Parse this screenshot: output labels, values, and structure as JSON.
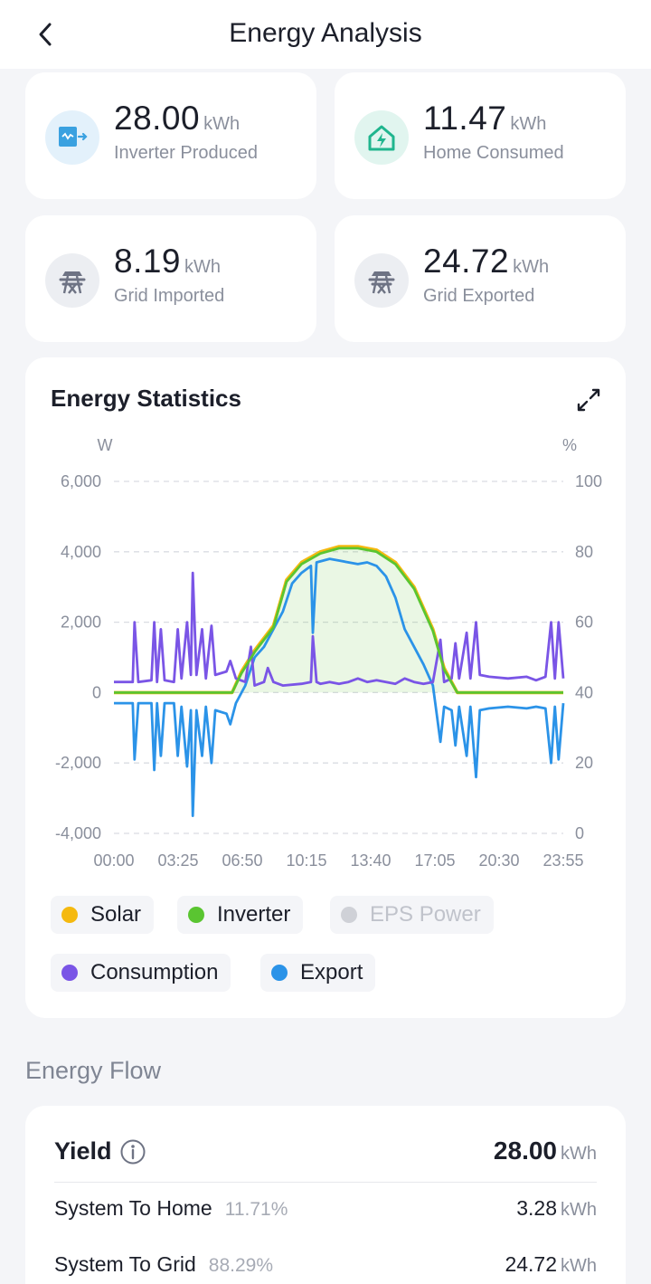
{
  "header": {
    "title": "Energy Analysis",
    "back_icon": "chevron-left-icon"
  },
  "stats": [
    {
      "value": "28.00",
      "unit": "kWh",
      "label": "Inverter Produced",
      "icon": "inverter-icon",
      "icon_color": "#3aa1e0",
      "icon_bg": "#e3f1fb"
    },
    {
      "value": "11.47",
      "unit": "kWh",
      "label": "Home Consumed",
      "icon": "home-energy-icon",
      "icon_color": "#20b58e",
      "icon_bg": "#e1f5ef"
    },
    {
      "value": "8.19",
      "unit": "kWh",
      "label": "Grid Imported",
      "icon": "grid-tower-icon",
      "icon_color": "#6e7384",
      "icon_bg": "#eceef2"
    },
    {
      "value": "24.72",
      "unit": "kWh",
      "label": "Grid Exported",
      "icon": "grid-tower-icon",
      "icon_color": "#6e7384",
      "icon_bg": "#eceef2"
    }
  ],
  "chart": {
    "title": "Energy Statistics",
    "expand_icon": "expand-icon"
  },
  "chart_data": {
    "type": "line",
    "y_left_label": "W",
    "y_right_label": "%",
    "y_left_ticks": [
      "6,000",
      "4,000",
      "2,000",
      "0",
      "-2,000",
      "-4,000"
    ],
    "y_right_ticks": [
      "100",
      "80",
      "60",
      "40",
      "20",
      "0"
    ],
    "ylim": [
      -4000,
      6000
    ],
    "x_ticks": [
      "00:00",
      "03:25",
      "06:50",
      "10:15",
      "13:40",
      "17:05",
      "20:30",
      "23:55"
    ],
    "grid": "dashed-horizontal",
    "series": [
      {
        "name": "Solar",
        "color": "#f5b90f",
        "points": [
          [
            0,
            0
          ],
          [
            6.3,
            0
          ],
          [
            6.8,
            600
          ],
          [
            7.5,
            1200
          ],
          [
            8.5,
            1900
          ],
          [
            9.2,
            3200
          ],
          [
            10,
            3700
          ],
          [
            11,
            4000
          ],
          [
            12,
            4150
          ],
          [
            13,
            4150
          ],
          [
            14,
            4050
          ],
          [
            15,
            3700
          ],
          [
            16,
            3000
          ],
          [
            17,
            1800
          ],
          [
            17.6,
            700
          ],
          [
            18.3,
            0
          ],
          [
            23.95,
            0
          ]
        ]
      },
      {
        "name": "Inverter",
        "color": "#5ac531",
        "points": [
          [
            0,
            0
          ],
          [
            6.3,
            0
          ],
          [
            6.8,
            550
          ],
          [
            7.5,
            1150
          ],
          [
            8.5,
            1850
          ],
          [
            9.2,
            3150
          ],
          [
            10,
            3650
          ],
          [
            11,
            3950
          ],
          [
            12,
            4100
          ],
          [
            13,
            4100
          ],
          [
            14,
            4000
          ],
          [
            15,
            3650
          ],
          [
            16,
            2950
          ],
          [
            17,
            1750
          ],
          [
            17.6,
            650
          ],
          [
            18.3,
            0
          ],
          [
            23.95,
            0
          ]
        ]
      },
      {
        "name": "EPS Power",
        "color": "#c9ccd3",
        "points": []
      },
      {
        "name": "Consumption",
        "color": "#7a55e6",
        "points": [
          [
            0,
            300
          ],
          [
            1,
            300
          ],
          [
            1.1,
            2000
          ],
          [
            1.3,
            300
          ],
          [
            2,
            350
          ],
          [
            2.15,
            2000
          ],
          [
            2.3,
            300
          ],
          [
            2.5,
            1800
          ],
          [
            2.7,
            350
          ],
          [
            3.2,
            300
          ],
          [
            3.4,
            1800
          ],
          [
            3.6,
            400
          ],
          [
            3.9,
            2000
          ],
          [
            4.1,
            500
          ],
          [
            4.2,
            3400
          ],
          [
            4.4,
            500
          ],
          [
            4.7,
            1800
          ],
          [
            4.9,
            400
          ],
          [
            5.2,
            1900
          ],
          [
            5.4,
            500
          ],
          [
            6,
            600
          ],
          [
            6.2,
            900
          ],
          [
            6.5,
            400
          ],
          [
            7,
            300
          ],
          [
            7.3,
            1300
          ],
          [
            7.5,
            200
          ],
          [
            8,
            300
          ],
          [
            8.2,
            700
          ],
          [
            8.5,
            300
          ],
          [
            9,
            200
          ],
          [
            10,
            250
          ],
          [
            10.5,
            300
          ],
          [
            10.6,
            1600
          ],
          [
            10.8,
            300
          ],
          [
            11,
            250
          ],
          [
            11.5,
            300
          ],
          [
            12,
            250
          ],
          [
            12.5,
            300
          ],
          [
            13,
            400
          ],
          [
            13.5,
            300
          ],
          [
            14,
            350
          ],
          [
            14.5,
            300
          ],
          [
            15,
            250
          ],
          [
            15.5,
            400
          ],
          [
            16,
            300
          ],
          [
            16.5,
            250
          ],
          [
            17,
            300
          ],
          [
            17.4,
            1500
          ],
          [
            17.6,
            300
          ],
          [
            18,
            400
          ],
          [
            18.2,
            1400
          ],
          [
            18.4,
            400
          ],
          [
            18.8,
            1700
          ],
          [
            19,
            400
          ],
          [
            19.3,
            2000
          ],
          [
            19.5,
            500
          ],
          [
            20,
            450
          ],
          [
            21,
            400
          ],
          [
            22,
            450
          ],
          [
            22.5,
            350
          ],
          [
            23,
            450
          ],
          [
            23.3,
            2000
          ],
          [
            23.5,
            400
          ],
          [
            23.7,
            2000
          ],
          [
            23.95,
            400
          ]
        ]
      },
      {
        "name": "Export",
        "color": "#2b93e8",
        "points": [
          [
            0,
            -300
          ],
          [
            1,
            -300
          ],
          [
            1.1,
            -1900
          ],
          [
            1.3,
            -300
          ],
          [
            2,
            -300
          ],
          [
            2.15,
            -2200
          ],
          [
            2.3,
            -300
          ],
          [
            2.5,
            -1800
          ],
          [
            2.7,
            -300
          ],
          [
            3.2,
            -300
          ],
          [
            3.4,
            -1800
          ],
          [
            3.6,
            -400
          ],
          [
            3.9,
            -2100
          ],
          [
            4.1,
            -500
          ],
          [
            4.2,
            -3500
          ],
          [
            4.4,
            -500
          ],
          [
            4.7,
            -1800
          ],
          [
            4.9,
            -400
          ],
          [
            5.2,
            -2000
          ],
          [
            5.4,
            -500
          ],
          [
            6,
            -600
          ],
          [
            6.2,
            -900
          ],
          [
            6.5,
            -300
          ],
          [
            7,
            200
          ],
          [
            7.5,
            1000
          ],
          [
            8,
            1300
          ],
          [
            8.5,
            1800
          ],
          [
            9,
            2300
          ],
          [
            9.5,
            3100
          ],
          [
            10,
            3400
          ],
          [
            10.5,
            3600
          ],
          [
            10.6,
            1700
          ],
          [
            10.8,
            3700
          ],
          [
            11.5,
            3800
          ],
          [
            12,
            3750
          ],
          [
            12.5,
            3700
          ],
          [
            13,
            3650
          ],
          [
            13.5,
            3700
          ],
          [
            14,
            3600
          ],
          [
            14.5,
            3300
          ],
          [
            15,
            2700
          ],
          [
            15.5,
            1800
          ],
          [
            16,
            1300
          ],
          [
            16.5,
            800
          ],
          [
            17,
            200
          ],
          [
            17.4,
            -1400
          ],
          [
            17.6,
            -400
          ],
          [
            18,
            -500
          ],
          [
            18.2,
            -1500
          ],
          [
            18.4,
            -400
          ],
          [
            18.8,
            -1800
          ],
          [
            19,
            -400
          ],
          [
            19.3,
            -2400
          ],
          [
            19.5,
            -500
          ],
          [
            20,
            -450
          ],
          [
            21,
            -400
          ],
          [
            22,
            -450
          ],
          [
            22.5,
            -400
          ],
          [
            23,
            -450
          ],
          [
            23.3,
            -2000
          ],
          [
            23.5,
            -400
          ],
          [
            23.7,
            -1900
          ],
          [
            23.95,
            -300
          ]
        ]
      }
    ]
  },
  "legend": [
    {
      "label": "Solar",
      "color": "#f5b90f",
      "active": true
    },
    {
      "label": "Inverter",
      "color": "#5ac531",
      "active": true
    },
    {
      "label": "EPS Power",
      "color": "#cfd1d7",
      "active": false
    },
    {
      "label": "Consumption",
      "color": "#7a55e6",
      "active": true
    },
    {
      "label": "Export",
      "color": "#2b93e8",
      "active": true
    }
  ],
  "energy_flow": {
    "title": "Energy Flow",
    "yield_label": "Yield",
    "yield_value": "28.00",
    "yield_unit": "kWh",
    "info_icon": "info-icon",
    "rows": [
      {
        "label": "System To Home",
        "percent": "11.71%",
        "value": "3.28",
        "unit": "kWh"
      },
      {
        "label": "System To Grid",
        "percent": "88.29%",
        "value": "24.72",
        "unit": "kWh"
      }
    ]
  }
}
